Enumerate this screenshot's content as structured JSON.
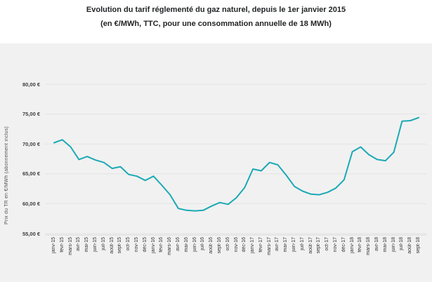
{
  "title": {
    "line1": "Evolution du tarif réglementé du gaz naturel, depuis le 1er janvier 2015",
    "line2": "(en €/MWh, TTC, pour une consommation annuelle de 18 MWh)"
  },
  "chart_data": {
    "type": "line",
    "title": "Evolution du tarif réglementé du gaz naturel, depuis le 1er janvier 2015",
    "subtitle": "(en €/MWh, TTC, pour une consommation annuelle de 18 MWh)",
    "ylabel": "Prix du TR en €/MWh (abonnement inclus)",
    "xlabel": "",
    "ylim": [
      55,
      80
    ],
    "grid": true,
    "legend": "none",
    "line_color": "#1ba9b5",
    "plot_bg": "#f1f1f1",
    "grid_color": "#e3e3e3",
    "categories": [
      "janv-15",
      "févr-15",
      "mars-15",
      "avr-15",
      "mai-15",
      "juin-15",
      "juil-15",
      "août-15",
      "sept-15",
      "oct-15",
      "nov-15",
      "déc-15",
      "janv-16",
      "févr-16",
      "mars-16",
      "avr-16",
      "mai-16",
      "juin-16",
      "juil-16",
      "août-16",
      "sept-16",
      "oct-16",
      "nov-16",
      "déc-16",
      "janv-17",
      "févr-17",
      "mars-17",
      "avr-17",
      "mai-17",
      "juin-17",
      "juil-17",
      "août-17",
      "sept-17",
      "oct-17",
      "nov-17",
      "déc-17",
      "janv-18",
      "févr-18",
      "mars-18",
      "avr-18",
      "mai-18",
      "juin-18",
      "juil-18",
      "août-18",
      "sept-18"
    ],
    "series": [
      {
        "name": "Prix du TR en €/MWh (abonnement inclus)",
        "values": [
          70.2,
          70.7,
          69.5,
          67.4,
          67.9,
          67.3,
          66.9,
          65.9,
          66.2,
          64.9,
          64.6,
          63.9,
          64.6,
          63.1,
          61.5,
          59.2,
          58.9,
          58.8,
          58.9,
          59.6,
          60.2,
          59.9,
          61.0,
          62.7,
          65.8,
          65.5,
          66.9,
          66.5,
          64.8,
          62.9,
          62.1,
          61.6,
          61.5,
          61.9,
          62.6,
          64.0,
          68.7,
          69.5,
          68.2,
          67.4,
          67.2,
          68.6,
          73.8,
          73.9,
          74.4
        ]
      }
    ],
    "yticks": [
      {
        "label": "80,00 €",
        "value": 80
      },
      {
        "label": "75,00 €",
        "value": 75
      },
      {
        "label": "70,00 €",
        "value": 70
      },
      {
        "label": "65,00 €",
        "value": 65
      },
      {
        "label": "60,00 €",
        "value": 60
      },
      {
        "label": "55,00 €",
        "value": 55
      }
    ]
  }
}
